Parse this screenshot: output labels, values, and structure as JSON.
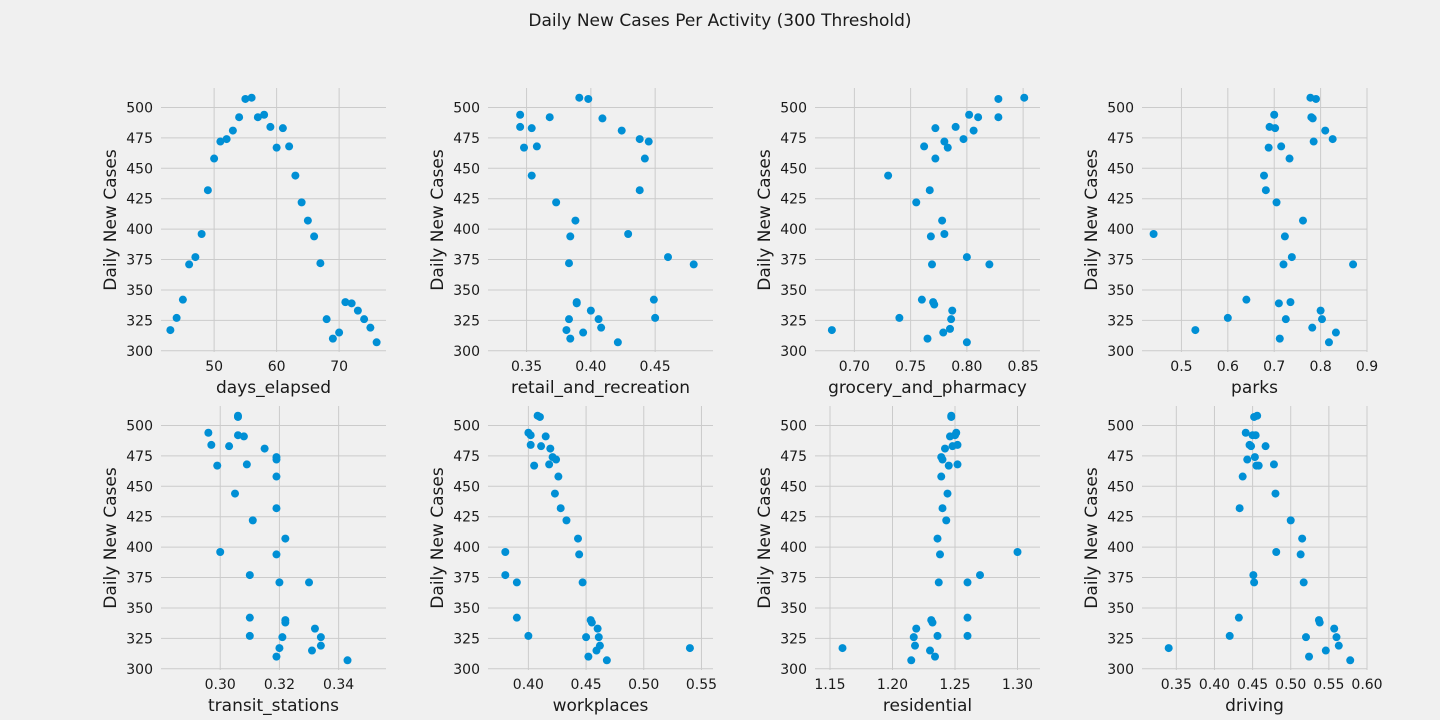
{
  "title": "Daily New Cases Per Activity (300 Threshold)",
  "style": {
    "background": "#f0f0f0",
    "grid": "#cbcbcb",
    "point": "#008fd5"
  },
  "chart_data": [
    {
      "type": "scatter",
      "xlabel": "days_elapsed",
      "ylabel": "Daily New Cases",
      "xlim": [
        41.5,
        77.5
      ],
      "ylim": [
        299,
        516
      ],
      "xticks": [
        50,
        60,
        70
      ],
      "xtick_labels": [
        "50",
        "60",
        "70"
      ],
      "yticks": [
        300,
        325,
        350,
        375,
        400,
        425,
        450,
        475,
        500
      ],
      "grid": true,
      "legend": "none",
      "x": [
        43,
        44,
        45,
        46,
        47,
        48,
        49,
        50,
        51,
        52,
        53,
        54,
        55,
        56,
        57,
        58,
        59,
        60,
        61,
        62,
        63,
        64,
        65,
        66,
        67,
        68,
        69,
        70,
        71,
        72,
        73,
        74,
        75,
        76
      ],
      "y": [
        317,
        327,
        342,
        371,
        377,
        396,
        432,
        458,
        472,
        474,
        481,
        492,
        507,
        508,
        492,
        494,
        484,
        467,
        483,
        468,
        444,
        422,
        407,
        394,
        372,
        326,
        310,
        315,
        340,
        339,
        333,
        326,
        319,
        307
      ]
    },
    {
      "type": "scatter",
      "xlabel": "retail_and_recreation",
      "ylabel": "Daily New Cases",
      "xlim": [
        0.32,
        0.495
      ],
      "ylim": [
        299,
        516
      ],
      "xticks": [
        0.35,
        0.4,
        0.45
      ],
      "xtick_labels": [
        "0.35",
        "0.40",
        "0.45"
      ],
      "yticks": [
        300,
        325,
        350,
        375,
        400,
        425,
        450,
        475,
        500
      ],
      "grid": true,
      "legend": "none",
      "x": [
        0.345,
        0.345,
        0.348,
        0.354,
        0.354,
        0.358,
        0.368,
        0.373,
        0.383,
        0.384,
        0.388,
        0.389,
        0.391,
        0.398,
        0.409,
        0.424,
        0.429,
        0.438,
        0.438,
        0.442,
        0.445,
        0.449,
        0.46,
        0.48,
        0.383,
        0.384,
        0.389,
        0.394,
        0.381,
        0.4,
        0.406,
        0.408,
        0.421,
        0.45
      ],
      "y": [
        494,
        484,
        467,
        483,
        444,
        468,
        492,
        422,
        372,
        394,
        407,
        339,
        508,
        507,
        491,
        481,
        396,
        474,
        432,
        458,
        472,
        342,
        377,
        371,
        326,
        310,
        340,
        315,
        317,
        333,
        326,
        319,
        307,
        327
      ]
    },
    {
      "type": "scatter",
      "xlabel": "grocery_and_pharmacy",
      "ylabel": "Daily New Cases",
      "xlim": [
        0.665,
        0.865
      ],
      "ylim": [
        299,
        516
      ],
      "xticks": [
        0.7,
        0.75,
        0.8,
        0.85
      ],
      "xtick_labels": [
        "0.70",
        "0.75",
        "0.80",
        "0.85"
      ],
      "yticks": [
        300,
        325,
        350,
        375,
        400,
        425,
        450,
        475,
        500
      ],
      "grid": true,
      "legend": "none",
      "x": [
        0.68,
        0.73,
        0.74,
        0.755,
        0.76,
        0.762,
        0.765,
        0.767,
        0.768,
        0.769,
        0.77,
        0.771,
        0.772,
        0.772,
        0.778,
        0.779,
        0.78,
        0.78,
        0.783,
        0.785,
        0.786,
        0.787,
        0.79,
        0.797,
        0.8,
        0.8,
        0.802,
        0.806,
        0.81,
        0.82,
        0.828,
        0.828,
        0.851
      ],
      "y": [
        317,
        444,
        327,
        422,
        342,
        468,
        310,
        432,
        394,
        371,
        340,
        338,
        458,
        483,
        407,
        315,
        396,
        472,
        467,
        318,
        326,
        333,
        484,
        474,
        307,
        377,
        494,
        481,
        492,
        371,
        507,
        492,
        508
      ]
    },
    {
      "type": "scatter",
      "xlabel": "parks",
      "ylabel": "Daily New Cases",
      "xlim": [
        0.415,
        0.9
      ],
      "ylim": [
        299,
        516
      ],
      "xticks": [
        0.5,
        0.6,
        0.7,
        0.8,
        0.9
      ],
      "xtick_labels": [
        "0.5",
        "0.6",
        "0.7",
        "0.8",
        "0.9"
      ],
      "yticks": [
        300,
        325,
        350,
        375,
        400,
        425,
        450,
        475,
        500
      ],
      "grid": true,
      "legend": "none",
      "x": [
        0.44,
        0.53,
        0.6,
        0.64,
        0.678,
        0.682,
        0.688,
        0.69,
        0.7,
        0.702,
        0.705,
        0.71,
        0.712,
        0.715,
        0.72,
        0.723,
        0.725,
        0.733,
        0.735,
        0.738,
        0.762,
        0.778,
        0.78,
        0.782,
        0.783,
        0.785,
        0.79,
        0.8,
        0.803,
        0.81,
        0.818,
        0.826,
        0.833,
        0.87
      ],
      "y": [
        396,
        317,
        327,
        342,
        444,
        432,
        467,
        484,
        494,
        483,
        422,
        339,
        310,
        468,
        371,
        394,
        326,
        458,
        340,
        377,
        407,
        508,
        492,
        319,
        491,
        472,
        507,
        333,
        326,
        481,
        307,
        474,
        315,
        371
      ]
    },
    {
      "type": "scatter",
      "xlabel": "transit_stations",
      "ylabel": "Daily New Cases",
      "xlim": [
        0.28,
        0.356
      ],
      "ylim": [
        299,
        516
      ],
      "xticks": [
        0.3,
        0.32,
        0.34
      ],
      "xtick_labels": [
        "0.30",
        "0.32",
        "0.34"
      ],
      "yticks": [
        300,
        325,
        350,
        375,
        400,
        425,
        450,
        475,
        500
      ],
      "grid": true,
      "legend": "none",
      "x": [
        0.296,
        0.297,
        0.299,
        0.3,
        0.303,
        0.305,
        0.306,
        0.306,
        0.306,
        0.308,
        0.309,
        0.31,
        0.31,
        0.31,
        0.311,
        0.315,
        0.319,
        0.319,
        0.319,
        0.319,
        0.319,
        0.319,
        0.32,
        0.32,
        0.321,
        0.322,
        0.322,
        0.322,
        0.33,
        0.331,
        0.332,
        0.334,
        0.334,
        0.343
      ],
      "y": [
        494,
        484,
        467,
        396,
        483,
        444,
        492,
        508,
        507,
        491,
        468,
        377,
        342,
        327,
        422,
        481,
        474,
        472,
        458,
        432,
        394,
        310,
        371,
        317,
        326,
        340,
        338,
        407,
        371,
        315,
        333,
        326,
        319,
        307
      ]
    },
    {
      "type": "scatter",
      "xlabel": "workplaces",
      "ylabel": "Daily New Cases",
      "xlim": [
        0.365,
        0.56
      ],
      "ylim": [
        299,
        516
      ],
      "xticks": [
        0.4,
        0.45,
        0.5,
        0.55
      ],
      "xtick_labels": [
        "0.40",
        "0.45",
        "0.50",
        "0.55"
      ],
      "yticks": [
        300,
        325,
        350,
        375,
        400,
        425,
        450,
        475,
        500
      ],
      "grid": true,
      "legend": "none",
      "x": [
        0.38,
        0.38,
        0.39,
        0.39,
        0.4,
        0.4,
        0.402,
        0.402,
        0.405,
        0.408,
        0.41,
        0.411,
        0.415,
        0.418,
        0.419,
        0.421,
        0.423,
        0.424,
        0.426,
        0.428,
        0.433,
        0.443,
        0.444,
        0.447,
        0.45,
        0.452,
        0.454,
        0.455,
        0.459,
        0.46,
        0.461,
        0.462,
        0.468,
        0.54
      ],
      "y": [
        396,
        377,
        371,
        342,
        327,
        494,
        492,
        484,
        467,
        508,
        507,
        483,
        491,
        468,
        481,
        474,
        444,
        472,
        458,
        432,
        422,
        407,
        394,
        371,
        326,
        310,
        340,
        338,
        315,
        333,
        326,
        319,
        307,
        317
      ]
    },
    {
      "type": "scatter",
      "xlabel": "residential",
      "ylabel": "Daily New Cases",
      "xlim": [
        1.138,
        1.318
      ],
      "ylim": [
        299,
        516
      ],
      "xticks": [
        1.15,
        1.2,
        1.25,
        1.3
      ],
      "xtick_labels": [
        "1.15",
        "1.20",
        "1.25",
        "1.30"
      ],
      "yticks": [
        300,
        325,
        350,
        375,
        400,
        425,
        450,
        475,
        500
      ],
      "grid": true,
      "legend": "none",
      "x": [
        1.16,
        1.215,
        1.217,
        1.218,
        1.219,
        1.23,
        1.231,
        1.232,
        1.234,
        1.236,
        1.236,
        1.237,
        1.238,
        1.239,
        1.239,
        1.24,
        1.242,
        1.243,
        1.244,
        1.245,
        1.246,
        1.247,
        1.247,
        1.248,
        1.25,
        1.251,
        1.252,
        1.252,
        1.26,
        1.26,
        1.26,
        1.27,
        1.3,
        1.24
      ],
      "y": [
        317,
        307,
        326,
        319,
        333,
        315,
        340,
        338,
        310,
        327,
        407,
        371,
        394,
        458,
        474,
        472,
        481,
        422,
        444,
        467,
        491,
        508,
        507,
        483,
        492,
        494,
        484,
        468,
        342,
        327,
        371,
        377,
        396,
        432
      ]
    },
    {
      "type": "scatter",
      "xlabel": "driving",
      "ylabel": "Daily New Cases",
      "xlim": [
        0.305,
        0.6
      ],
      "ylim": [
        299,
        516
      ],
      "xticks": [
        0.35,
        0.4,
        0.45,
        0.5,
        0.55,
        0.6
      ],
      "xtick_labels": [
        "0.35",
        "0.40",
        "0.45",
        "0.50",
        "0.55",
        "0.60"
      ],
      "yticks": [
        300,
        325,
        350,
        375,
        400,
        425,
        450,
        475,
        500
      ],
      "grid": true,
      "legend": "none",
      "x": [
        0.34,
        0.42,
        0.432,
        0.433,
        0.437,
        0.441,
        0.443,
        0.446,
        0.448,
        0.45,
        0.451,
        0.452,
        0.452,
        0.453,
        0.454,
        0.455,
        0.456,
        0.458,
        0.467,
        0.478,
        0.48,
        0.481,
        0.5,
        0.513,
        0.515,
        0.517,
        0.52,
        0.524,
        0.537,
        0.538,
        0.546,
        0.557,
        0.56,
        0.563,
        0.578
      ],
      "y": [
        317,
        327,
        342,
        432,
        458,
        494,
        472,
        484,
        483,
        492,
        377,
        507,
        371,
        474,
        492,
        467,
        508,
        467,
        483,
        468,
        444,
        396,
        422,
        394,
        407,
        371,
        326,
        310,
        340,
        338,
        315,
        333,
        326,
        319,
        307
      ]
    }
  ]
}
